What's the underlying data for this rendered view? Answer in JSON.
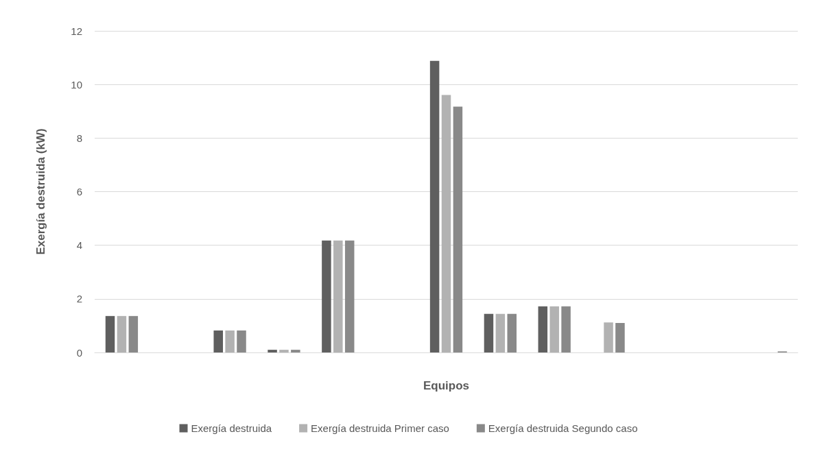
{
  "chart_data": {
    "type": "bar",
    "xlabel": "Equipos",
    "ylabel": "Exergía destruida (kW)",
    "categories": [
      null,
      null,
      null,
      null,
      null,
      null,
      null,
      null,
      null,
      null,
      null,
      null,
      null
    ],
    "series": [
      {
        "name": "Exergía destruida",
        "color": "#5f5f5f",
        "values": [
          1.36,
          0,
          0.82,
          0.1,
          4.18,
          0,
          10.88,
          1.44,
          1.72,
          0,
          0,
          0,
          0
        ]
      },
      {
        "name": "Exergía destruida Primer caso",
        "color": "#b2b2b2",
        "values": [
          1.36,
          0,
          0.82,
          0.1,
          4.18,
          0,
          9.61,
          1.44,
          1.72,
          1.12,
          0,
          0,
          0
        ]
      },
      {
        "name": "Exergía destruida Segundo caso",
        "color": "#898989",
        "values": [
          1.36,
          0,
          0.82,
          0.1,
          4.18,
          0,
          9.17,
          1.44,
          1.72,
          1.1,
          0,
          0,
          0.04
        ]
      }
    ],
    "ylim": [
      0,
      12
    ],
    "yticks": [
      0,
      2,
      4,
      6,
      8,
      10,
      12
    ],
    "grid": "y",
    "legend": "bottom"
  }
}
